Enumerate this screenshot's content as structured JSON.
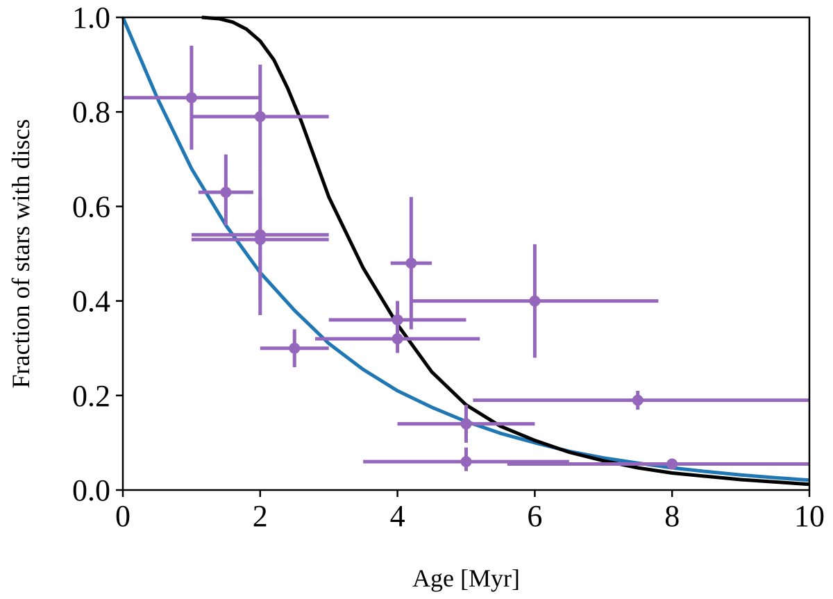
{
  "chart_data": {
    "type": "scatter",
    "xlabel": "Age [Myr]",
    "ylabel": "Fraction of stars with discs",
    "xlim": [
      0,
      10
    ],
    "ylim": [
      0,
      1
    ],
    "xticks": [
      0,
      2,
      4,
      6,
      8,
      10
    ],
    "xtick_labels": [
      "0",
      "2",
      "4",
      "6",
      "8",
      "10"
    ],
    "yticks": [
      0.0,
      0.2,
      0.4,
      0.6,
      0.8,
      1.0
    ],
    "ytick_labels": [
      "0.0",
      "0.2",
      "0.4",
      "0.6",
      "0.8",
      "1.0"
    ],
    "grid": false,
    "colors": {
      "points": "#9467bd",
      "curve_blue": "#1f77b4",
      "curve_black": "#000000"
    },
    "points": [
      {
        "x": 1.0,
        "y": 0.83,
        "xlo": 0.0,
        "xhi": 2.0,
        "ylo": 0.72,
        "yhi": 0.94
      },
      {
        "x": 2.0,
        "y": 0.79,
        "xlo": 1.0,
        "xhi": 3.0,
        "ylo": 0.68,
        "yhi": 0.9
      },
      {
        "x": 1.5,
        "y": 0.63,
        "xlo": 1.1,
        "xhi": 1.9,
        "ylo": 0.56,
        "yhi": 0.71
      },
      {
        "x": 2.0,
        "y": 0.54,
        "xlo": 1.0,
        "xhi": 3.0,
        "ylo": 0.37,
        "yhi": 0.68
      },
      {
        "x": 2.0,
        "y": 0.53,
        "xlo": 1.0,
        "xhi": 3.0,
        "ylo": 0.4,
        "yhi": 0.62
      },
      {
        "x": 2.5,
        "y": 0.3,
        "xlo": 2.0,
        "xhi": 3.0,
        "ylo": 0.26,
        "yhi": 0.34
      },
      {
        "x": 4.0,
        "y": 0.36,
        "xlo": 3.0,
        "xhi": 5.0,
        "ylo": 0.33,
        "yhi": 0.4
      },
      {
        "x": 4.0,
        "y": 0.32,
        "xlo": 2.8,
        "xhi": 5.2,
        "ylo": 0.29,
        "yhi": 0.35
      },
      {
        "x": 4.2,
        "y": 0.48,
        "xlo": 3.9,
        "xhi": 4.5,
        "ylo": 0.34,
        "yhi": 0.62
      },
      {
        "x": 6.0,
        "y": 0.4,
        "xlo": 4.2,
        "xhi": 7.8,
        "ylo": 0.28,
        "yhi": 0.52
      },
      {
        "x": 5.0,
        "y": 0.14,
        "xlo": 4.0,
        "xhi": 6.0,
        "ylo": 0.1,
        "yhi": 0.18
      },
      {
        "x": 5.0,
        "y": 0.06,
        "xlo": 3.5,
        "xhi": 6.5,
        "ylo": 0.04,
        "yhi": 0.09
      },
      {
        "x": 7.5,
        "y": 0.19,
        "xlo": 5.1,
        "xhi": 10.0,
        "ylo": 0.17,
        "yhi": 0.21
      },
      {
        "x": 8.0,
        "y": 0.055,
        "xlo": 5.6,
        "xhi": 10.0,
        "ylo": 0.045,
        "yhi": 0.065
      }
    ],
    "curves": [
      {
        "color": "#1f77b4",
        "x": [
          0,
          0.5,
          1,
          1.5,
          2,
          2.5,
          3,
          3.5,
          4,
          4.5,
          5,
          5.5,
          6,
          6.5,
          7,
          7.5,
          8,
          8.5,
          9,
          9.5,
          10
        ],
        "y": [
          1.0,
          0.83,
          0.68,
          0.56,
          0.46,
          0.38,
          0.31,
          0.255,
          0.21,
          0.175,
          0.145,
          0.12,
          0.1,
          0.082,
          0.068,
          0.057,
          0.047,
          0.039,
          0.032,
          0.026,
          0.021
        ]
      },
      {
        "color": "#000000",
        "x": [
          1.15,
          1.4,
          1.6,
          1.8,
          2.0,
          2.2,
          2.4,
          2.6,
          2.8,
          3.0,
          3.5,
          4.0,
          4.5,
          5.0,
          5.5,
          6.0,
          6.5,
          7.0,
          7.5,
          8.0,
          8.5,
          9.0,
          9.5,
          10
        ],
        "y": [
          1.0,
          0.997,
          0.99,
          0.975,
          0.95,
          0.91,
          0.85,
          0.78,
          0.7,
          0.62,
          0.47,
          0.35,
          0.25,
          0.18,
          0.135,
          0.105,
          0.08,
          0.062,
          0.047,
          0.036,
          0.029,
          0.022,
          0.017,
          0.012
        ]
      }
    ]
  }
}
